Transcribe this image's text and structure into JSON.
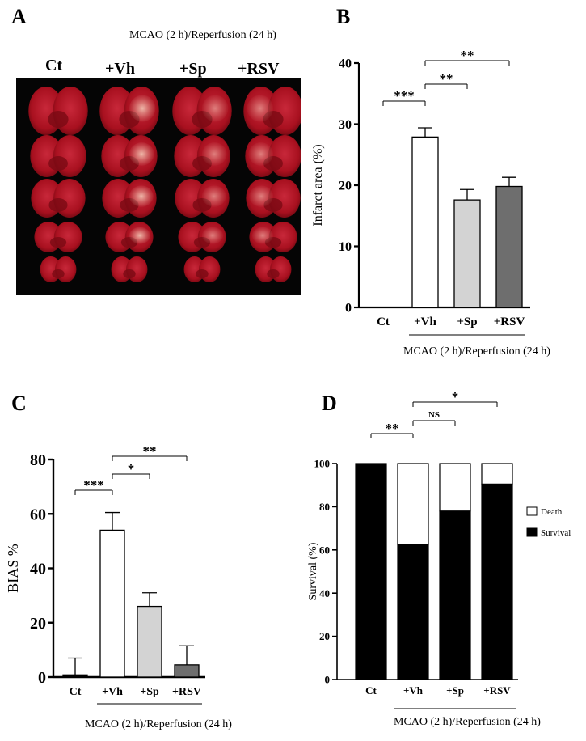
{
  "panel_a": {
    "letter": "A",
    "header": "MCAO (2 h)/Reperfusion (24 h)",
    "columns": [
      "Ct",
      "+Vh",
      "+Sp",
      "+RSV"
    ],
    "colors": {
      "background": "#050505",
      "tissue": "#b01828",
      "pale": "#e9b0a0",
      "dark": "#6a0810"
    }
  },
  "chart_data": [
    {
      "panel": "B",
      "type": "bar",
      "title": "",
      "xlabel": "",
      "ylabel": "Infarct area (%)",
      "categories": [
        "Ct",
        "+Vh",
        "+Sp",
        "+RSV"
      ],
      "values": [
        0,
        27.9,
        17.6,
        19.8
      ],
      "errors": [
        0,
        1.5,
        1.7,
        1.5
      ],
      "colors": [
        "#ffffff",
        "#ffffff",
        "#d3d3d3",
        "#6e6e6e"
      ],
      "ylim": [
        0,
        40
      ],
      "yticks": [
        0,
        10,
        20,
        30,
        40
      ],
      "footer": "MCAO (2 h)/Reperfusion (24 h)",
      "significance": [
        {
          "from": 0,
          "to": 1,
          "label": "***"
        },
        {
          "from": 1,
          "to": 2,
          "label": "**"
        },
        {
          "from": 1,
          "to": 3,
          "label": "**"
        }
      ]
    },
    {
      "panel": "C",
      "type": "bar",
      "title": "",
      "xlabel": "",
      "ylabel": "BIAS %",
      "categories": [
        "Ct",
        "+Vh",
        "+Sp",
        "+RSV"
      ],
      "values": [
        0.8,
        54,
        26,
        4.5
      ],
      "errors": [
        6.2,
        6.5,
        5,
        7
      ],
      "colors": [
        "#000000",
        "#ffffff",
        "#d3d3d3",
        "#6e6e6e"
      ],
      "ylim": [
        0,
        80
      ],
      "yticks": [
        0,
        20,
        40,
        60,
        80
      ],
      "footer": "MCAO (2 h)/Reperfusion (24 h)",
      "significance": [
        {
          "from": 0,
          "to": 1,
          "label": "***"
        },
        {
          "from": 1,
          "to": 2,
          "label": "*"
        },
        {
          "from": 1,
          "to": 3,
          "label": "**"
        }
      ]
    },
    {
      "panel": "D",
      "type": "bar",
      "stacked": true,
      "title": "",
      "xlabel": "",
      "ylabel": "Survival  (%)",
      "categories": [
        "Ct",
        "+Vh",
        "+Sp",
        "+RSV"
      ],
      "series": [
        {
          "name": "Survival",
          "values": [
            100,
            62.5,
            78,
            90.5
          ],
          "color": "#000000"
        },
        {
          "name": "Death",
          "values": [
            0,
            37.5,
            22,
            9.5
          ],
          "color": "#ffffff"
        }
      ],
      "ylim": [
        0,
        100
      ],
      "yticks": [
        0,
        20,
        40,
        60,
        80,
        100
      ],
      "legend": "right",
      "footer": "MCAO (2 h)/Reperfusion (24 h)",
      "significance": [
        {
          "from": 0,
          "to": 1,
          "label": "**"
        },
        {
          "from": 1,
          "to": 2,
          "label": "NS"
        },
        {
          "from": 1,
          "to": 3,
          "label": "*"
        }
      ]
    }
  ]
}
